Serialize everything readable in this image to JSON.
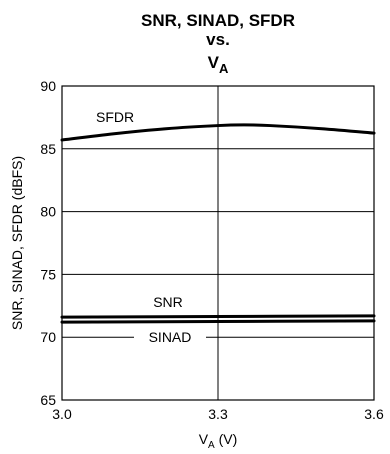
{
  "chart_data": {
    "type": "line",
    "title_lines": [
      "SNR, SINAD, SFDR",
      "vs."
    ],
    "title_var": "V",
    "title_var_sub": "A",
    "xlabel_var": "V",
    "xlabel_sub": "A",
    "xlabel_unit": " (V)",
    "ylabel": "SNR, SINAD, SFDR (dBFS)",
    "xlim": [
      3.0,
      3.6
    ],
    "ylim": [
      65,
      90
    ],
    "xticks": [
      3.0,
      3.3,
      3.6
    ],
    "xtick_labels": [
      "3.0",
      "3.3",
      "3.6"
    ],
    "yticks": [
      65,
      70,
      75,
      80,
      85,
      90
    ],
    "ytick_labels": [
      "65",
      "70",
      "75",
      "80",
      "85",
      "90"
    ],
    "grid": true,
    "legend": "none",
    "series": [
      {
        "name": "SFDR",
        "color": "#000000",
        "x": [
          3.0,
          3.1,
          3.2,
          3.3,
          3.35,
          3.4,
          3.5,
          3.6
        ],
        "y": [
          85.7,
          86.2,
          86.6,
          86.85,
          86.9,
          86.85,
          86.6,
          86.25
        ]
      },
      {
        "name": "SNR",
        "color": "#000000",
        "x": [
          3.0,
          3.3,
          3.6
        ],
        "y": [
          71.6,
          71.65,
          71.7
        ]
      },
      {
        "name": "SINAD",
        "color": "#000000",
        "x": [
          3.0,
          3.3,
          3.6
        ],
        "y": [
          71.2,
          71.25,
          71.3
        ]
      }
    ]
  }
}
